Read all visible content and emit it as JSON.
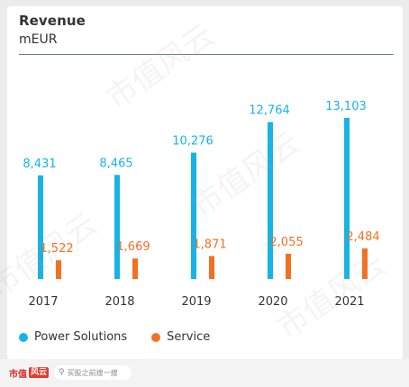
{
  "chart_data": {
    "type": "bar",
    "title": "Revenue",
    "subtitle": "mEUR",
    "categories": [
      "2017",
      "2018",
      "2019",
      "2020",
      "2021"
    ],
    "series": [
      {
        "name": "Power Solutions",
        "color": "#16b4e6",
        "values": [
          8431,
          8465,
          10276,
          12764,
          13103
        ],
        "labels": [
          "8,431",
          "8,465",
          "10,276",
          "12,764",
          "13,103"
        ]
      },
      {
        "name": "Service",
        "color": "#f37021",
        "values": [
          1522,
          1669,
          1871,
          2055,
          2484
        ],
        "labels": [
          "1,522",
          "1,669",
          "1,871",
          "2,055",
          "2,484"
        ]
      }
    ],
    "ylim": [
      0,
      13103
    ],
    "grid": false,
    "legend": "bottom-left"
  },
  "footer": {
    "brand_text": "市值",
    "brand_logo_text": "风云",
    "search_placeholder": "买股之前搜一搜",
    "search_icon": "search-icon"
  },
  "watermark": "市值风云"
}
